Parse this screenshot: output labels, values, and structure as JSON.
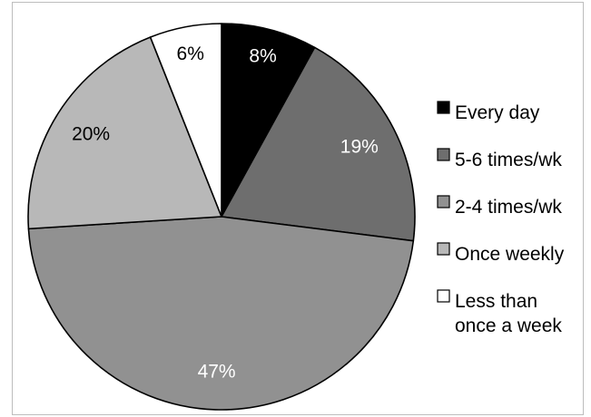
{
  "chart_data": {
    "type": "pie",
    "title": "",
    "slices": [
      {
        "label_lines": [
          "Every day"
        ],
        "value": 8,
        "label": "8%",
        "color": "#000000",
        "label_color": "#ffffff"
      },
      {
        "label_lines": [
          "5-6 times/wk"
        ],
        "value": 19,
        "label": "19%",
        "color": "#6e6e6e",
        "label_color": "#ffffff"
      },
      {
        "label_lines": [
          "2-4 times/wk"
        ],
        "value": 47,
        "label": "47%",
        "color": "#919191",
        "label_color": "#ffffff"
      },
      {
        "label_lines": [
          "Once weekly"
        ],
        "value": 20,
        "label": "20%",
        "color": "#b8b8b8",
        "label_color": "#000000"
      },
      {
        "label_lines": [
          "Less than",
          "once a week"
        ],
        "value": 6,
        "label": "6%",
        "color": "#ffffff",
        "label_color": "#000000"
      }
    ],
    "legend_position": "right",
    "start": "top, clockwise"
  }
}
